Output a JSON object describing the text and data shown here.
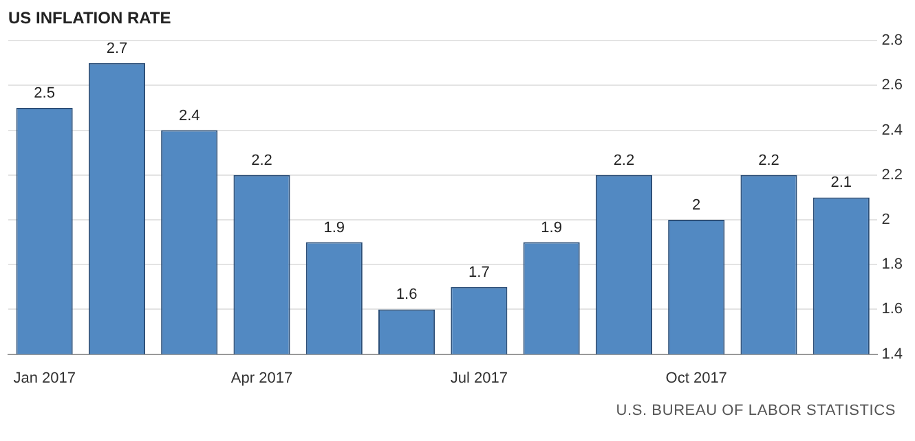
{
  "chart_data": {
    "type": "bar",
    "title": "US INFLATION RATE",
    "categories": [
      "Jan 2017",
      null,
      null,
      "Apr 2017",
      null,
      null,
      "Jul 2017",
      null,
      null,
      "Oct 2017",
      null,
      null
    ],
    "values": [
      2.5,
      2.7,
      2.4,
      2.2,
      1.9,
      1.6,
      1.7,
      1.9,
      2.2,
      2,
      2.2,
      2.1
    ],
    "color": "#5289c2",
    "ylim": [
      1.4,
      2.8
    ],
    "yticks": [
      1.4,
      1.6,
      1.8,
      2,
      2.2,
      2.4,
      2.6,
      2.8
    ],
    "grid": "y",
    "data_labels": true,
    "legend": false,
    "annotations": [
      "U.S. BUREAU OF LABOR STATISTICS"
    ]
  }
}
